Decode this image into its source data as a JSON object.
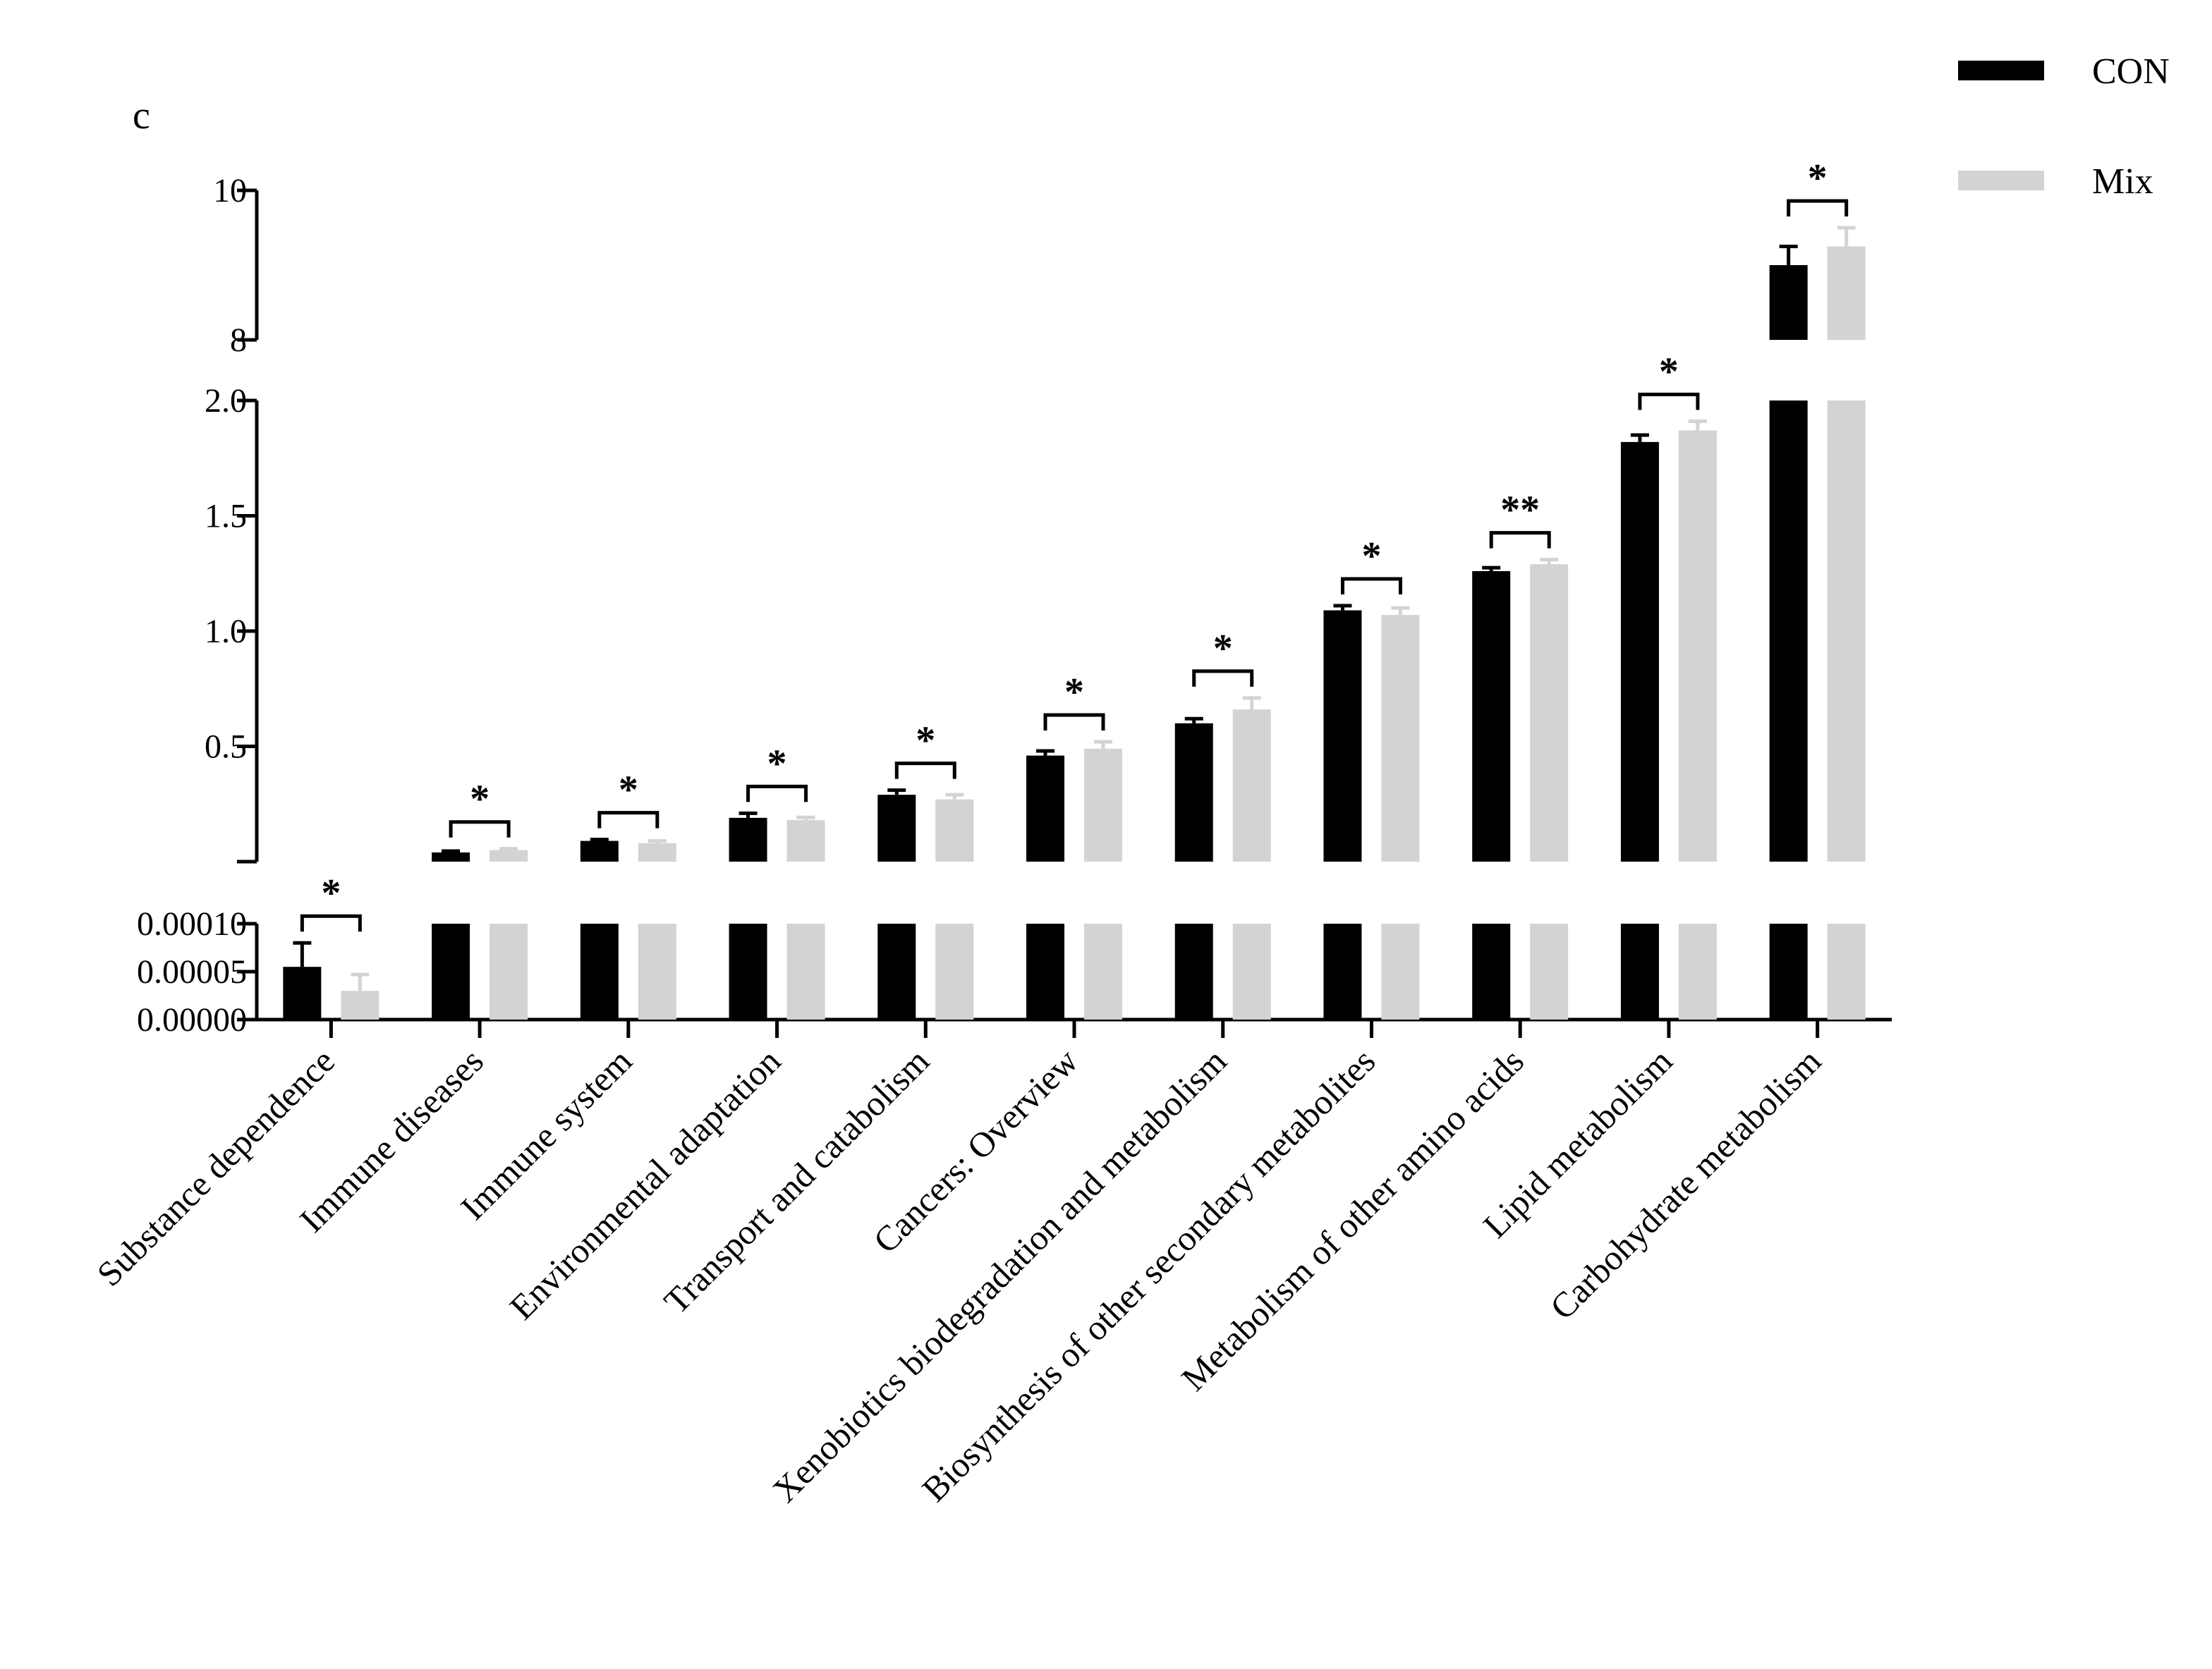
{
  "panel_label": "c",
  "chart_data": {
    "type": "bar",
    "y_axis_breaks": true,
    "categories": [
      "Substance dependence",
      "Immune diseases",
      "Immune system",
      "Environmental adaptation",
      "Transport and catabolism",
      "Cancers: Overview",
      "Xenobiotics biodegradation and metabolism",
      "Biosynthesis of other secondary metabolites",
      "Metabolism of other amino acids",
      "Lipid metabolism",
      "Carbohydrate metabolism"
    ],
    "series": [
      {
        "name": "CON",
        "color": "#000000",
        "values": [
          5.5e-05,
          0.04,
          0.09,
          0.19,
          0.29,
          0.46,
          0.6,
          1.09,
          1.26,
          1.82,
          9.0
        ],
        "errors": [
          2.5e-05,
          0.006,
          0.006,
          0.02,
          0.02,
          0.02,
          0.02,
          0.02,
          0.015,
          0.03,
          0.25
        ]
      },
      {
        "name": "Mix",
        "color": "#d3d3d3",
        "values": [
          3e-05,
          0.05,
          0.08,
          0.18,
          0.27,
          0.49,
          0.66,
          1.07,
          1.29,
          1.87,
          9.25
        ],
        "errors": [
          1.7e-05,
          0.006,
          0.01,
          0.012,
          0.02,
          0.03,
          0.05,
          0.03,
          0.02,
          0.04,
          0.25
        ]
      }
    ],
    "significance": [
      "*",
      "*",
      "*",
      "*",
      "*",
      "*",
      "*",
      "*",
      "**",
      "*",
      "*"
    ],
    "y_segments": [
      {
        "range": [
          0,
          0.0001
        ],
        "ticks": [
          0.0,
          5e-05,
          0.0001
        ],
        "tick_labels": [
          "0.00000",
          "0.00005",
          "0.00010"
        ]
      },
      {
        "range": [
          0,
          2.0
        ],
        "ticks": [
          0.5,
          1.0,
          1.5,
          2.0
        ],
        "tick_labels": [
          "0.5",
          "1.0",
          "1.5",
          "2.0"
        ]
      },
      {
        "range": [
          8,
          10
        ],
        "ticks": [
          8,
          10
        ],
        "tick_labels": [
          "8",
          "10"
        ]
      }
    ],
    "legend": {
      "position": "top-right",
      "entries": [
        "CON",
        "Mix"
      ]
    },
    "grid": false
  }
}
